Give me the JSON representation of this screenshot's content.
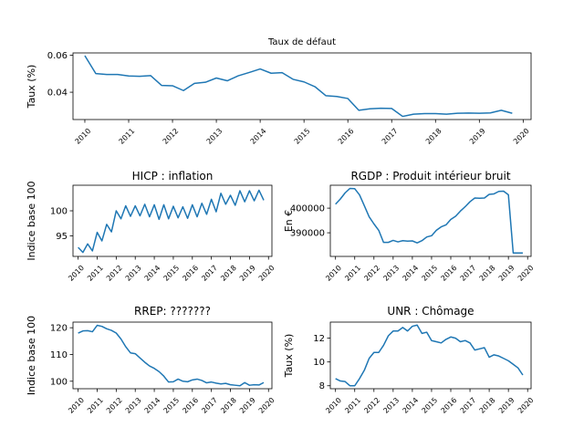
{
  "chart_data": [
    {
      "id": "defaut",
      "type": "line",
      "title": "Taux de défaut",
      "ylabel": "Taux (%)",
      "xlim": [
        2009.73,
        2020.18
      ],
      "ylim": [
        0.0252,
        0.0613
      ],
      "xticks": [
        2010,
        2011,
        2012,
        2013,
        2014,
        2015,
        2016,
        2017,
        2018,
        2019,
        2020
      ],
      "yticks": [
        0.04,
        0.06
      ],
      "ytick_labels": [
        "0.04",
        "0.06"
      ],
      "series": [
        {
          "color": "#1f77b4",
          "x": [
            2010.0,
            2010.25,
            2010.5,
            2010.75,
            2011.0,
            2011.25,
            2011.5,
            2011.75,
            2012.0,
            2012.25,
            2012.5,
            2012.75,
            2013.0,
            2013.25,
            2013.5,
            2013.75,
            2014.0,
            2014.25,
            2014.5,
            2014.75,
            2015.0,
            2015.25,
            2015.5,
            2015.75,
            2016.0,
            2016.25,
            2016.5,
            2016.75,
            2017.0,
            2017.25,
            2017.5,
            2017.75,
            2018.0,
            2018.25,
            2018.5,
            2018.75,
            2019.0,
            2019.25,
            2019.5,
            2019.75
          ],
          "y": [
            0.0598,
            0.0501,
            0.0496,
            0.0496,
            0.0488,
            0.0486,
            0.049,
            0.0437,
            0.0435,
            0.0409,
            0.0448,
            0.0454,
            0.0477,
            0.0462,
            0.0489,
            0.0507,
            0.0526,
            0.0503,
            0.0506,
            0.047,
            0.0456,
            0.043,
            0.0381,
            0.0377,
            0.0366,
            0.0302,
            0.031,
            0.0313,
            0.0312,
            0.0269,
            0.0281,
            0.0284,
            0.0284,
            0.0281,
            0.0286,
            0.0287,
            0.0286,
            0.0288,
            0.0302,
            0.0286
          ]
        }
      ]
    },
    {
      "id": "hicp",
      "type": "line",
      "title": "HICP : inflation",
      "ylabel": "Indice base 100",
      "xlim": [
        2009.73,
        2020.18
      ],
      "ylim": [
        90.9,
        105.1
      ],
      "xticks": [
        2010,
        2011,
        2012,
        2013,
        2014,
        2015,
        2016,
        2017,
        2018,
        2019,
        2020
      ],
      "yticks": [
        95,
        100
      ],
      "ytick_labels": [
        "95",
        "100"
      ],
      "series": [
        {
          "color": "#1f77b4",
          "x": [
            2010.0,
            2010.25,
            2010.5,
            2010.75,
            2011.0,
            2011.25,
            2011.5,
            2011.75,
            2012.0,
            2012.25,
            2012.5,
            2012.75,
            2013.0,
            2013.25,
            2013.5,
            2013.75,
            2014.0,
            2014.25,
            2014.5,
            2014.75,
            2015.0,
            2015.25,
            2015.5,
            2015.75,
            2016.0,
            2016.25,
            2016.5,
            2016.75,
            2017.0,
            2017.25,
            2017.5,
            2017.75,
            2018.0,
            2018.25,
            2018.5,
            2018.75,
            2019.0,
            2019.25,
            2019.5,
            2019.75
          ],
          "y": [
            92.7,
            91.7,
            93.4,
            92.0,
            95.7,
            94.0,
            97.3,
            95.8,
            100.0,
            98.4,
            101.0,
            98.9,
            101.0,
            99.0,
            101.3,
            98.8,
            101.2,
            98.3,
            101.2,
            98.4,
            100.9,
            98.6,
            100.8,
            98.5,
            101.2,
            98.8,
            101.5,
            99.3,
            102.3,
            99.8,
            103.5,
            101.3,
            103.1,
            101.1,
            104.0,
            101.8,
            104.0,
            102.0,
            104.1,
            102.1
          ]
        }
      ]
    },
    {
      "id": "rgdp",
      "type": "line",
      "title": "RGDP : Produit intérieur bruit",
      "ylabel": "En €",
      "xlim": [
        2009.73,
        2020.18
      ],
      "ylim": [
        380400,
        409300
      ],
      "xticks": [
        2010,
        2011,
        2012,
        2013,
        2014,
        2015,
        2016,
        2017,
        2018,
        2019,
        2020
      ],
      "yticks": [
        390000,
        400000
      ],
      "ytick_labels": [
        "390000",
        "400000"
      ],
      "series": [
        {
          "color": "#1f77b4",
          "x": [
            2010.0,
            2010.25,
            2010.5,
            2010.75,
            2011.0,
            2011.25,
            2011.5,
            2011.75,
            2012.0,
            2012.25,
            2012.5,
            2012.75,
            2013.0,
            2013.25,
            2013.5,
            2013.75,
            2014.0,
            2014.25,
            2014.5,
            2014.75,
            2015.0,
            2015.25,
            2015.5,
            2015.75,
            2016.0,
            2016.25,
            2016.5,
            2016.75,
            2017.0,
            2017.25,
            2017.5,
            2017.75,
            2018.0,
            2018.25,
            2018.5,
            2018.75,
            2019.0,
            2019.25,
            2019.5,
            2019.75
          ],
          "y": [
            401600,
            403700,
            406200,
            408000,
            407900,
            405400,
            401000,
            396500,
            393600,
            391000,
            386100,
            386100,
            386900,
            386300,
            386800,
            386600,
            386700,
            385900,
            386800,
            388300,
            388800,
            391000,
            392400,
            393200,
            395400,
            396700,
            398800,
            400600,
            402600,
            404100,
            404000,
            404100,
            405600,
            405800,
            406800,
            406900,
            405400,
            381800,
            381800,
            381800
          ]
        }
      ]
    },
    {
      "id": "rrep",
      "type": "line",
      "title": "RREP: ???????",
      "ylabel": "Indice base 100",
      "xlim": [
        2009.73,
        2020.18
      ],
      "ylim": [
        97.2,
        122.1
      ],
      "xticks": [
        2010,
        2011,
        2012,
        2013,
        2014,
        2015,
        2016,
        2017,
        2018,
        2019,
        2020
      ],
      "yticks": [
        100,
        110,
        120
      ],
      "ytick_labels": [
        "100",
        "110",
        "120"
      ],
      "series": [
        {
          "color": "#1f77b4",
          "x": [
            2010.0,
            2010.25,
            2010.5,
            2010.75,
            2011.0,
            2011.25,
            2011.5,
            2011.75,
            2012.0,
            2012.25,
            2012.5,
            2012.75,
            2013.0,
            2013.25,
            2013.5,
            2013.75,
            2014.0,
            2014.25,
            2014.5,
            2014.75,
            2015.0,
            2015.25,
            2015.5,
            2015.75,
            2016.0,
            2016.25,
            2016.5,
            2016.75,
            2017.0,
            2017.25,
            2017.5,
            2017.75,
            2018.0,
            2018.25,
            2018.5,
            2018.75,
            2019.0,
            2019.25,
            2019.5,
            2019.75
          ],
          "y": [
            118.0,
            118.8,
            118.9,
            118.5,
            120.9,
            120.5,
            119.6,
            119.0,
            118.0,
            115.8,
            112.9,
            110.6,
            110.3,
            108.7,
            107.1,
            105.7,
            104.8,
            103.6,
            101.9,
            99.7,
            99.8,
            100.8,
            100.0,
            99.8,
            100.5,
            100.8,
            100.3,
            99.4,
            99.7,
            99.3,
            99.0,
            99.2,
            98.7,
            98.5,
            98.3,
            99.5,
            98.5,
            98.7,
            98.6,
            99.5
          ]
        }
      ]
    },
    {
      "id": "unr",
      "type": "line",
      "title": "UNR : Chômage",
      "ylabel": "Taux (%)",
      "xlim": [
        2009.73,
        2020.18
      ],
      "ylim": [
        7.75,
        13.35
      ],
      "xticks": [
        2010,
        2011,
        2012,
        2013,
        2014,
        2015,
        2016,
        2017,
        2018,
        2019,
        2020
      ],
      "yticks": [
        8,
        10,
        12
      ],
      "ytick_labels": [
        "8",
        "10",
        "12"
      ],
      "series": [
        {
          "color": "#1f77b4",
          "x": [
            2010.0,
            2010.25,
            2010.5,
            2010.75,
            2011.0,
            2011.25,
            2011.5,
            2011.75,
            2012.0,
            2012.25,
            2012.5,
            2012.75,
            2013.0,
            2013.25,
            2013.5,
            2013.75,
            2014.0,
            2014.25,
            2014.5,
            2014.75,
            2015.0,
            2015.25,
            2015.5,
            2015.75,
            2016.0,
            2016.25,
            2016.5,
            2016.75,
            2017.0,
            2017.25,
            2017.5,
            2017.75,
            2018.0,
            2018.25,
            2018.5,
            2018.75,
            2019.0,
            2019.25,
            2019.5,
            2019.75
          ],
          "y": [
            8.6,
            8.4,
            8.35,
            8.0,
            8.0,
            8.6,
            9.3,
            10.3,
            10.8,
            10.8,
            11.4,
            12.2,
            12.6,
            12.6,
            12.9,
            12.6,
            13.0,
            13.1,
            12.4,
            12.5,
            11.8,
            11.7,
            11.6,
            11.9,
            12.1,
            12.0,
            11.7,
            11.8,
            11.6,
            11.0,
            11.1,
            11.2,
            10.4,
            10.6,
            10.5,
            10.3,
            10.1,
            9.8,
            9.5,
            8.9
          ]
        }
      ]
    }
  ]
}
